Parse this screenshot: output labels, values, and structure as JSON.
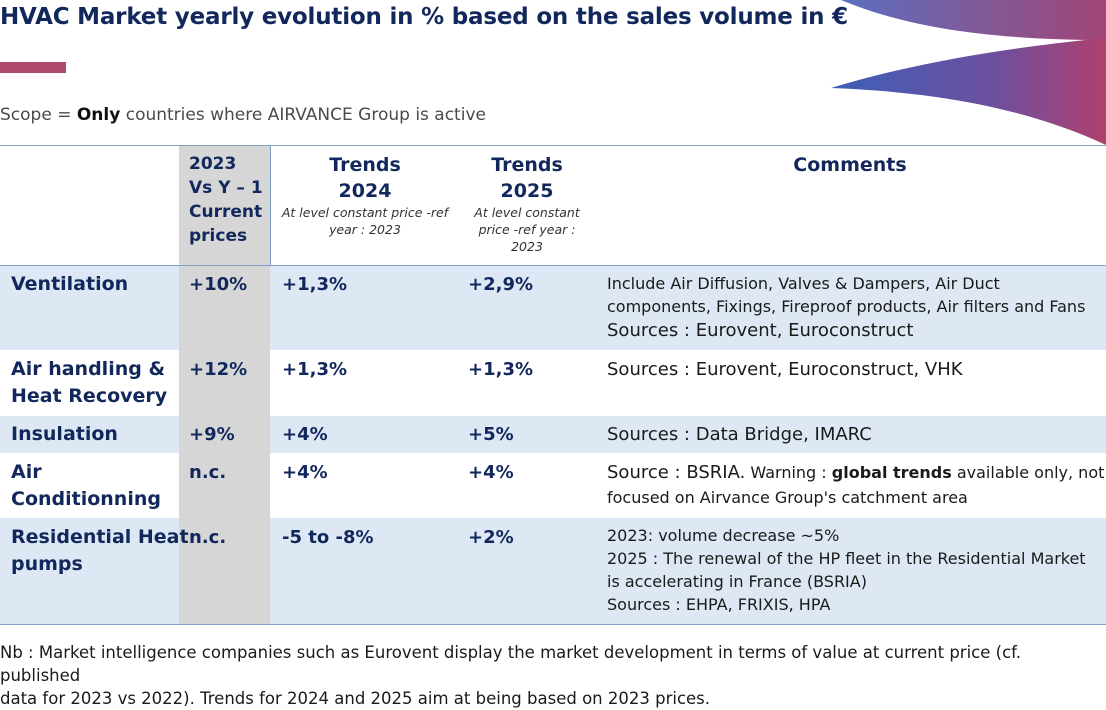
{
  "title": "HVAC Market yearly evolution in % based on the sales volume in €",
  "scope": {
    "prefix": "Scope = ",
    "emphasis": "Only",
    "suffix": " countries where AIRVANCE Group is active"
  },
  "colors": {
    "title": "#12285c",
    "accent_bar": "#b0496e",
    "band": "#dde8f4",
    "grey_column": "#d6d6d6",
    "rule": "#7fa2c9"
  },
  "header": {
    "col2023": [
      "2023",
      "Vs Y – 1",
      "Current",
      "prices"
    ],
    "trends2024": {
      "title": [
        "Trends",
        "2024"
      ],
      "sub": [
        "At level constant price -ref",
        "year : 2023"
      ]
    },
    "trends2025": {
      "title": [
        "Trends",
        "2025"
      ],
      "sub": [
        "At level constant",
        "price -ref year :",
        "2023"
      ]
    },
    "comments": "Comments"
  },
  "rows": [
    {
      "label": [
        "Ventilation"
      ],
      "v2023": "+10%",
      "t2024": "+1,3%",
      "t2025": "+2,9%",
      "comment": [
        "Include Air Diffusion, Valves & Dampers, Air Duct",
        "components, Fixings, Fireproof products, Air filters and Fans"
      ],
      "comment_sources": "Sources : Eurovent, Euroconstruct"
    },
    {
      "label": [
        "Air handling &",
        "Heat Recovery"
      ],
      "v2023": "+12%",
      "t2024": "+1,3%",
      "t2025": "+1,3%",
      "comment_sources": "Sources : Eurovent, Euroconstruct, VHK"
    },
    {
      "label": [
        "Insulation"
      ],
      "v2023": "+9%",
      "t2024": "+4%",
      "t2025": "+5%",
      "comment_sources": "Sources : Data Bridge, IMARC"
    },
    {
      "label": [
        "Air",
        "Conditionning"
      ],
      "v2023": "n.c.",
      "t2024": "+4%",
      "t2025": "+4%",
      "comment_source": "Source : BSRIA.",
      "comment_warning_prefix": " Warning : ",
      "comment_warning_bold": "global trends",
      "comment_warning_suffix": " available only, not",
      "comment_line2": "focused on Airvance Group's catchment area"
    },
    {
      "label": [
        "Residential Heat",
        "pumps"
      ],
      "v2023": "n.c.",
      "t2024": "-5 to -8%",
      "t2025": "+2%",
      "comment": [
        "2023: volume decrease ~5%",
        "2025 : The renewal of the HP fleet in the Residential Market",
        "is accelerating in France (BSRIA)",
        "Sources : EHPA, FRIXIS, HPA"
      ]
    }
  ],
  "note": [
    "Nb : Market intelligence companies such as Eurovent display the market development in terms of value at current price (cf. published",
    "data for 2023 vs 2022). Trends for 2024 and 2025 aim at being based on 2023 prices."
  ]
}
